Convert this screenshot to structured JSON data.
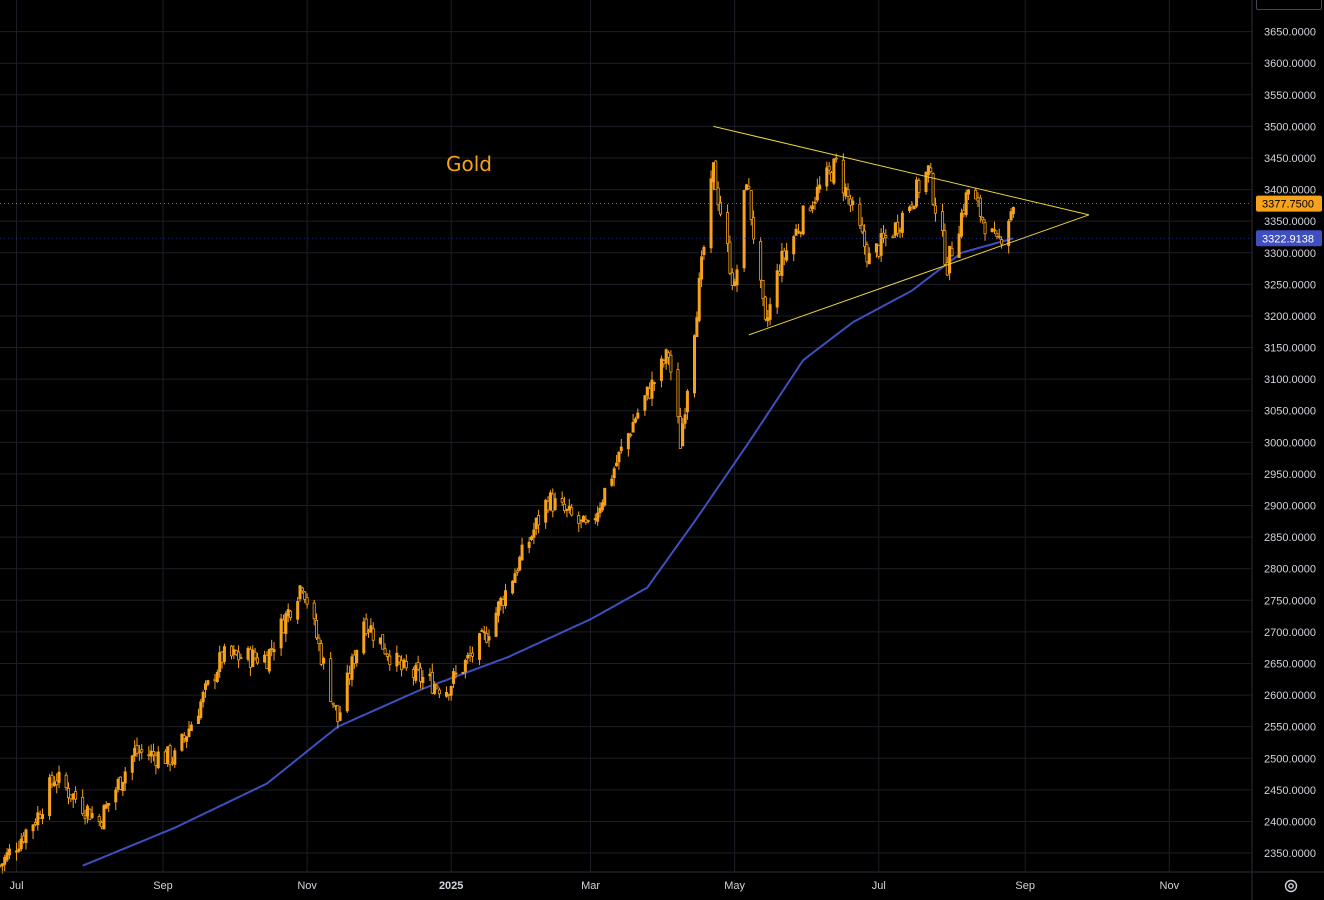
{
  "chart_data": {
    "type": "candlestick",
    "title": "Gold",
    "symbol_color": "#f7a21b",
    "moving_average_color": "#3f4fc0",
    "trendline_color": "#e8d33a",
    "y_axis": {
      "ticks": [
        2350,
        2400,
        2450,
        2500,
        2550,
        2600,
        2650,
        2700,
        2750,
        2800,
        2850,
        2900,
        2950,
        3000,
        3050,
        3100,
        3150,
        3200,
        3250,
        3300,
        3350,
        3400,
        3450,
        3500,
        3550,
        3600,
        3650
      ],
      "tick_labels": [
        "2350.0000",
        "2400.0000",
        "2450.0000",
        "2500.0000",
        "2550.0000",
        "2600.0000",
        "2650.0000",
        "2700.0000",
        "2750.0000",
        "2800.0000",
        "2850.0000",
        "2900.0000",
        "2950.0000",
        "3000.0000",
        "3050.0000",
        "3100.0000",
        "3150.0000",
        "3200.0000",
        "3250.0000",
        "3300.0000",
        "3350.0000",
        "3400.0000",
        "3450.0000",
        "3500.0000",
        "3550.0000",
        "3600.0000",
        "3650.0000"
      ],
      "range": [
        2320,
        3700
      ]
    },
    "x_axis": {
      "tick_labels": [
        "Jul",
        "Sep",
        "Nov",
        "2025",
        "Mar",
        "May",
        "Jul",
        "Sep",
        "Nov"
      ],
      "tick_dates": [
        "2024-07-01",
        "2024-09-01",
        "2024-11-01",
        "2025-01-01",
        "2025-03-01",
        "2025-05-01",
        "2025-07-01",
        "2025-09-01",
        "2025-11-01"
      ],
      "bold_labels": [
        "2025"
      ],
      "range": [
        "2024-06-24",
        "2025-12-06"
      ]
    },
    "grid": true,
    "price_path_dates": [
      "2024-06-24",
      "2024-07-10",
      "2024-07-17",
      "2024-08-05",
      "2024-08-20",
      "2024-09-06",
      "2024-09-26",
      "2024-10-15",
      "2024-10-30",
      "2024-11-14",
      "2024-11-25",
      "2024-12-11",
      "2024-12-30",
      "2025-01-15",
      "2025-02-11",
      "2025-02-28",
      "2025-03-20",
      "2025-04-03",
      "2025-04-08",
      "2025-04-22",
      "2025-05-01",
      "2025-05-06",
      "2025-05-14",
      "2025-05-20",
      "2025-06-02",
      "2025-06-13",
      "2025-06-27",
      "2025-07-08",
      "2025-07-22",
      "2025-07-30",
      "2025-08-08",
      "2025-08-20",
      "2025-08-27"
    ],
    "price_path_values": [
      2330,
      2410,
      2470,
      2400,
      2510,
      2500,
      2660,
      2660,
      2780,
      2560,
      2720,
      2640,
      2610,
      2690,
      2910,
      2860,
      3040,
      3140,
      3000,
      3430,
      3240,
      3420,
      3180,
      3280,
      3380,
      3440,
      3290,
      3340,
      3430,
      3280,
      3400,
      3310,
      3377.75
    ],
    "moving_average_dates": [
      "2024-07-29",
      "2024-09-06",
      "2024-10-15",
      "2024-11-14",
      "2024-12-20",
      "2025-01-25",
      "2025-03-01",
      "2025-03-25",
      "2025-04-15",
      "2025-05-07",
      "2025-05-30",
      "2025-06-20",
      "2025-07-15",
      "2025-08-05",
      "2025-08-27"
    ],
    "moving_average_values": [
      2330,
      2390,
      2460,
      2550,
      2610,
      2660,
      2720,
      2770,
      2880,
      3000,
      3130,
      3190,
      3240,
      3300,
      3322.91
    ],
    "trendlines": [
      {
        "name": "upper",
        "from": [
          "2025-04-22",
          3500
        ],
        "to": [
          "2025-09-28",
          3360
        ]
      },
      {
        "name": "lower",
        "from": [
          "2025-05-07",
          3170
        ],
        "to": [
          "2025-09-28",
          3360
        ]
      }
    ],
    "last_price": {
      "value": 3377.75,
      "label": "3377.7500",
      "color": "#f7a21b"
    },
    "ma_last": {
      "value": 3322.91,
      "label": "3322.9138",
      "color": "#3f4fc0"
    }
  }
}
